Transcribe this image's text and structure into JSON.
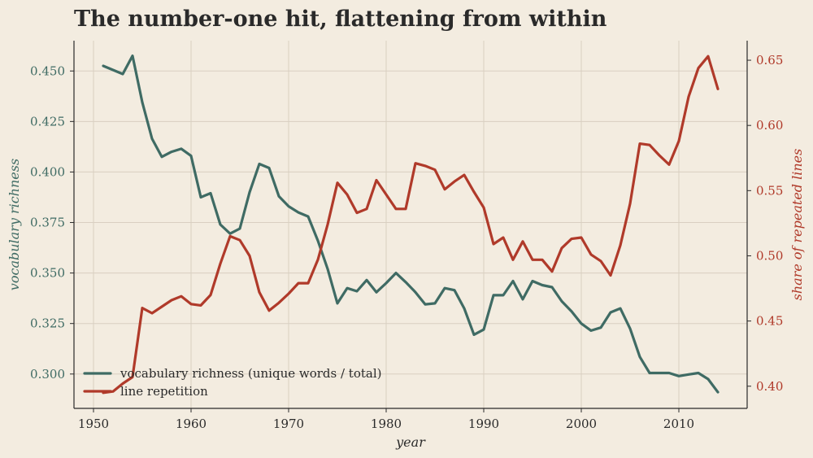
{
  "chart_data": {
    "type": "line",
    "title": "The number-one hit, flattening from within",
    "xlabel": "year",
    "ylabel_left": "vocabulary richness",
    "ylabel_right": "share of repeated lines",
    "xlim": [
      1948,
      2017
    ],
    "ylim_left": [
      0.283,
      0.465
    ],
    "ylim_right": [
      0.383,
      0.665
    ],
    "x_ticks": [
      1950,
      1960,
      1970,
      1980,
      1990,
      2000,
      2010
    ],
    "y_ticks_left": [
      0.3,
      0.325,
      0.35,
      0.375,
      0.4,
      0.425,
      0.45
    ],
    "y_ticks_right": [
      0.4,
      0.45,
      0.5,
      0.55,
      0.6,
      0.65
    ],
    "grid": true,
    "legend_position": "bottom-left",
    "x": [
      1951,
      1952,
      1953,
      1954,
      1955,
      1956,
      1957,
      1958,
      1959,
      1960,
      1961,
      1962,
      1963,
      1964,
      1965,
      1966,
      1967,
      1968,
      1969,
      1970,
      1971,
      1972,
      1973,
      1974,
      1975,
      1976,
      1977,
      1978,
      1979,
      1980,
      1981,
      1982,
      1983,
      1984,
      1985,
      1986,
      1987,
      1988,
      1989,
      1990,
      1991,
      1992,
      1993,
      1994,
      1995,
      1996,
      1997,
      1998,
      1999,
      2000,
      2001,
      2002,
      2003,
      2004,
      2005,
      2006,
      2007,
      2008,
      2009,
      2010,
      2011,
      2012,
      2013,
      2014
    ],
    "series": [
      {
        "name": "vocabulary richness (unique words / total)",
        "axis": "left",
        "color": "#3f6b64",
        "values": [
          0.4525,
          0.4505,
          0.4485,
          0.4575,
          0.4345,
          0.4165,
          0.4075,
          0.41,
          0.4115,
          0.408,
          0.3875,
          0.3895,
          0.374,
          0.3695,
          0.372,
          0.39,
          0.404,
          0.402,
          0.388,
          0.383,
          0.38,
          0.378,
          0.366,
          0.352,
          0.335,
          0.3425,
          0.341,
          0.3465,
          0.3405,
          0.345,
          0.35,
          0.3455,
          0.3405,
          0.3345,
          0.335,
          0.3425,
          0.3415,
          0.3325,
          0.3195,
          0.322,
          0.339,
          0.339,
          0.346,
          0.337,
          0.346,
          0.344,
          0.343,
          0.336,
          0.331,
          0.325,
          0.3215,
          0.323,
          0.3305,
          0.3325,
          0.3225,
          0.3085,
          0.3005,
          0.3005,
          0.3005,
          0.299,
          0.2998,
          0.3005,
          0.2975,
          0.291
        ]
      },
      {
        "name": "line repetition",
        "axis": "right",
        "color": "#b03a2a",
        "values": [
          0.395,
          0.396,
          0.402,
          0.407,
          0.46,
          0.456,
          0.461,
          0.466,
          0.469,
          0.463,
          0.462,
          0.47,
          0.494,
          0.515,
          0.512,
          0.5,
          0.472,
          0.458,
          0.464,
          0.471,
          0.479,
          0.479,
          0.497,
          0.524,
          0.556,
          0.547,
          0.533,
          0.536,
          0.558,
          0.547,
          0.536,
          0.536,
          0.571,
          0.569,
          0.566,
          0.551,
          0.557,
          0.562,
          0.549,
          0.537,
          0.509,
          0.514,
          0.497,
          0.511,
          0.497,
          0.497,
          0.488,
          0.506,
          0.513,
          0.514,
          0.501,
          0.496,
          0.485,
          0.508,
          0.54,
          0.586,
          0.585,
          0.577,
          0.57,
          0.588,
          0.622,
          0.644,
          0.653,
          0.628
        ]
      }
    ]
  }
}
